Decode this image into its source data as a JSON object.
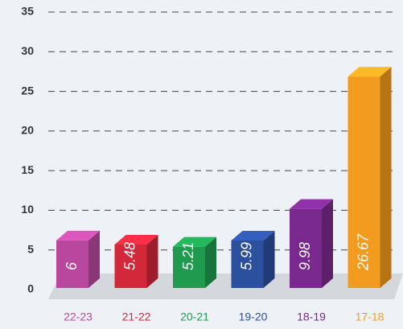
{
  "chart_data": {
    "type": "bar3d",
    "categories": [
      "22-23",
      "21-22",
      "20-21",
      "19-20",
      "18-19",
      "17-18"
    ],
    "values": [
      6,
      5.48,
      5.21,
      5.99,
      9.98,
      26.67
    ],
    "colors": [
      "#b8489e",
      "#d3273a",
      "#1f9a4e",
      "#2c4f9e",
      "#7a2a8e",
      "#f39b1f"
    ],
    "ylim": [
      0,
      35
    ],
    "yticks": [
      0,
      5,
      10,
      15,
      20,
      25,
      30,
      35
    ],
    "grid": true
  }
}
